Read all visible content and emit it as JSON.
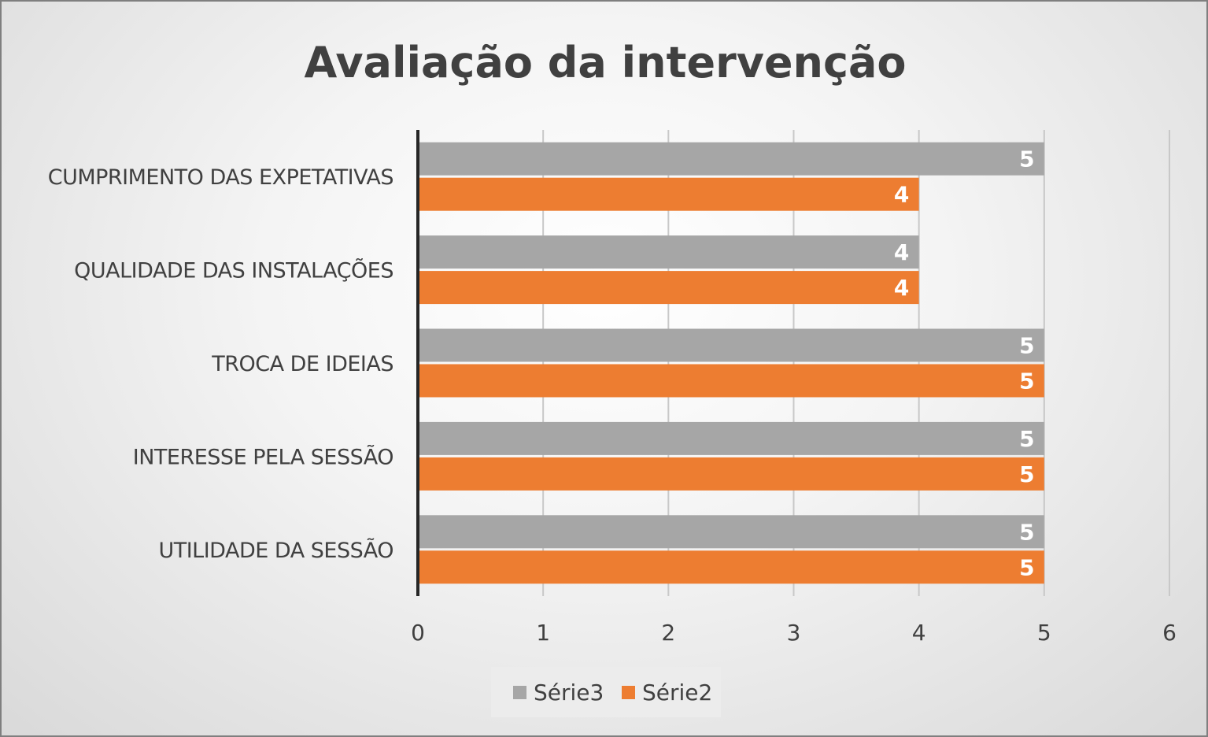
{
  "chart_data": {
    "type": "bar",
    "orientation": "horizontal",
    "title": "Avaliação da intervenção",
    "categories": [
      "CUMPRIMENTO DAS EXPETATIVAS",
      "QUALIDADE DAS INSTALAÇÕES",
      "TROCA DE IDEIAS",
      "INTERESSE PELA SESSÃO",
      "UTILIDADE DA SESSÃO"
    ],
    "series": [
      {
        "name": "Série3",
        "color": "#a6a6a6",
        "values": [
          5,
          4,
          5,
          5,
          5
        ]
      },
      {
        "name": "Série2",
        "color": "#ed7d31",
        "values": [
          4,
          4,
          5,
          5,
          5
        ]
      }
    ],
    "xlim": [
      0,
      6
    ],
    "xticks": [
      "0",
      "1",
      "2",
      "3",
      "4",
      "5",
      "6"
    ],
    "grid": true,
    "data_labels": true,
    "legend_position": "bottom"
  }
}
